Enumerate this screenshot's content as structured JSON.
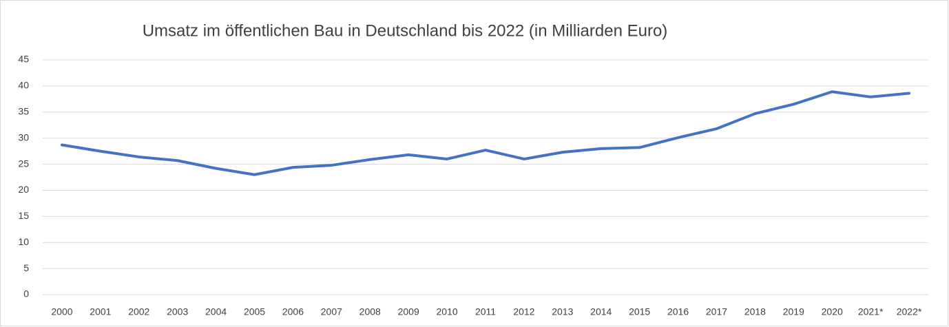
{
  "chart_data": {
    "type": "line",
    "title": "Umsatz im öffentlichen Bau in Deutschland bis 2022 (in Milliarden Euro)",
    "categories": [
      "2000",
      "2001",
      "2002",
      "2003",
      "2004",
      "2005",
      "2006",
      "2007",
      "2008",
      "2009",
      "2010",
      "2011",
      "2012",
      "2013",
      "2014",
      "2015",
      "2016",
      "2017",
      "2018",
      "2019",
      "2020",
      "2021*",
      "2022*"
    ],
    "series": [
      {
        "name": "Umsatz",
        "color": "#4472c4",
        "values": [
          28.7,
          27.5,
          26.4,
          25.7,
          24.2,
          23.0,
          24.4,
          24.8,
          25.9,
          26.8,
          26.0,
          27.7,
          26.0,
          27.3,
          28.0,
          28.2,
          30.1,
          31.8,
          34.7,
          36.5,
          38.9,
          37.9,
          38.6
        ]
      }
    ],
    "ylim": [
      0,
      45
    ],
    "yticks": [
      0,
      5,
      10,
      15,
      20,
      25,
      30,
      35,
      40,
      45
    ],
    "grid": true
  }
}
